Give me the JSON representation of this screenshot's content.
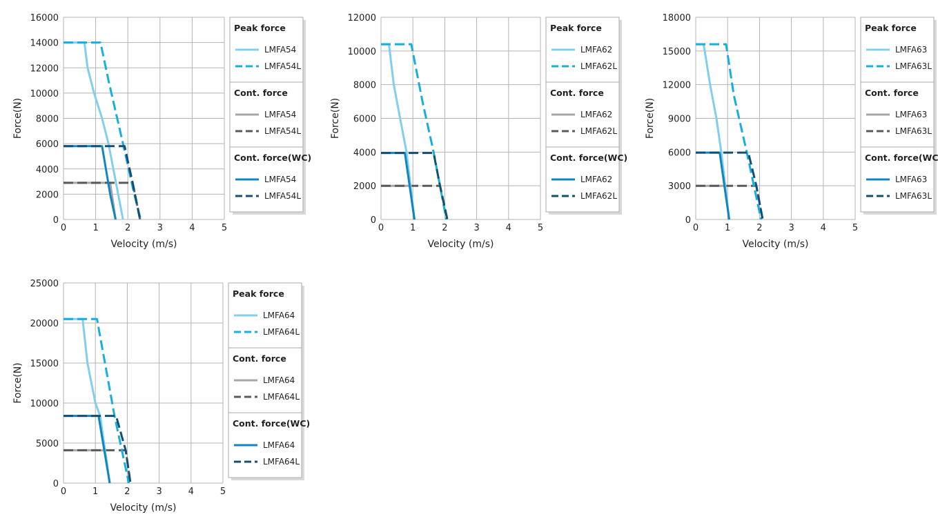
{
  "colors": {
    "peak": "#80cfef",
    "peak_l": "#14aee0",
    "cont": "#a6a6a6",
    "cont_l": "#595959",
    "wc": "#0f85c2",
    "wc_l": "#124f73",
    "grid": "#b3b3b3",
    "legend_border": "#aaaaaa",
    "legend_shadow": "#d9d9d9"
  },
  "chart_data": [
    {
      "type": "line",
      "xlabel": "Velocity (m/s)",
      "ylabel": "Force(N)",
      "xlim": [
        0,
        5
      ],
      "ylim": [
        0,
        16000
      ],
      "xticks": [
        "0",
        "1",
        "2",
        "3",
        "4",
        "5"
      ],
      "yticks": [
        "0",
        "2000",
        "4000",
        "6000",
        "8000",
        "10000",
        "12000",
        "14000",
        "16000"
      ],
      "grid": true,
      "legend": {
        "placement": "right",
        "groups": [
          {
            "title": "Peak force",
            "items": [
              "LMFA54",
              "LMFA54L"
            ]
          },
          {
            "title": "Cont. force",
            "items": [
              "LMFA54",
              "LMFA54L"
            ]
          },
          {
            "title": "Cont. force(WC)",
            "items": [
              "LMFA54",
              "LMFA54L"
            ]
          }
        ]
      },
      "series": [
        {
          "name": "LMFA54",
          "group": "Peak force",
          "style": "peak",
          "points": [
            [
              0,
              14000
            ],
            [
              0.65,
              14000
            ],
            [
              0.75,
              12000
            ],
            [
              0.95,
              10000
            ],
            [
              1.2,
              8000
            ],
            [
              1.4,
              6000
            ],
            [
              1.7,
              2000
            ],
            [
              1.85,
              0
            ]
          ]
        },
        {
          "name": "LMFA54L",
          "group": "Peak force",
          "style": "peak_l",
          "points": [
            [
              0,
              14000
            ],
            [
              1.15,
              14000
            ],
            [
              1.4,
              11000
            ],
            [
              1.85,
              6000
            ],
            [
              2.2,
              2000
            ],
            [
              2.4,
              0
            ]
          ]
        },
        {
          "name": "LMFA54",
          "group": "Cont. force",
          "style": "cont",
          "points": [
            [
              0,
              2900
            ],
            [
              1.45,
              2900
            ],
            [
              1.62,
              0
            ]
          ]
        },
        {
          "name": "LMFA54L",
          "group": "Cont. force",
          "style": "cont_l",
          "points": [
            [
              0,
              2900
            ],
            [
              2.15,
              2900
            ],
            [
              2.38,
              0
            ]
          ]
        },
        {
          "name": "LMFA54",
          "group": "Cont. force(WC)",
          "style": "wc",
          "points": [
            [
              0,
              5800
            ],
            [
              1.2,
              5800
            ],
            [
              1.45,
              2000
            ],
            [
              1.62,
              0
            ]
          ]
        },
        {
          "name": "LMFA54L",
          "group": "Cont. force(WC)",
          "style": "wc_l",
          "points": [
            [
              0,
              5800
            ],
            [
              1.9,
              5800
            ],
            [
              2.15,
              2900
            ],
            [
              2.38,
              0
            ]
          ]
        }
      ]
    },
    {
      "type": "line",
      "xlabel": "Velocity (m/s)",
      "ylabel": "Force(N)",
      "xlim": [
        0,
        5
      ],
      "ylim": [
        0,
        12000
      ],
      "xticks": [
        "0",
        "1",
        "2",
        "3",
        "4",
        "5"
      ],
      "yticks": [
        "0",
        "2000",
        "4000",
        "6000",
        "8000",
        "10000",
        "12000"
      ],
      "grid": true,
      "legend": {
        "placement": "right",
        "groups": [
          {
            "title": "Peak force",
            "items": [
              "LMFA62",
              "LMFA62L"
            ]
          },
          {
            "title": "Cont. force",
            "items": [
              "LMFA62",
              "LMFA62L"
            ]
          },
          {
            "title": "Cont. force(WC)",
            "items": [
              "LMFA62",
              "LMFA62L"
            ]
          }
        ]
      },
      "series": [
        {
          "name": "LMFA62",
          "group": "Peak force",
          "style": "peak",
          "points": [
            [
              0,
              10400
            ],
            [
              0.25,
              10400
            ],
            [
              0.4,
              8000
            ],
            [
              0.6,
              6000
            ],
            [
              0.8,
              4000
            ],
            [
              1.05,
              0
            ]
          ]
        },
        {
          "name": "LMFA62L",
          "group": "Peak force",
          "style": "peak_l",
          "points": [
            [
              0,
              10400
            ],
            [
              0.95,
              10400
            ],
            [
              1.3,
              7000
            ],
            [
              1.65,
              4000
            ],
            [
              2.05,
              0
            ]
          ]
        },
        {
          "name": "LMFA62",
          "group": "Cont. force",
          "style": "cont",
          "points": [
            [
              0,
              2000
            ],
            [
              0.9,
              2000
            ],
            [
              1.05,
              0
            ]
          ]
        },
        {
          "name": "LMFA62L",
          "group": "Cont. force",
          "style": "cont_l",
          "points": [
            [
              0,
              2000
            ],
            [
              1.85,
              2000
            ],
            [
              2.08,
              0
            ]
          ]
        },
        {
          "name": "LMFA62",
          "group": "Cont. force(WC)",
          "style": "wc",
          "points": [
            [
              0,
              3950
            ],
            [
              0.75,
              3950
            ],
            [
              1.05,
              0
            ]
          ]
        },
        {
          "name": "LMFA62L",
          "group": "Cont. force(WC)",
          "style": "wc_l",
          "points": [
            [
              0,
              3950
            ],
            [
              1.65,
              3950
            ],
            [
              1.85,
              2000
            ],
            [
              2.08,
              0
            ]
          ]
        }
      ]
    },
    {
      "type": "line",
      "xlabel": "Velocity (m/s)",
      "ylabel": "Force(N)",
      "xlim": [
        0,
        5
      ],
      "ylim": [
        0,
        18000
      ],
      "xticks": [
        "0",
        "1",
        "2",
        "3",
        "4",
        "5"
      ],
      "yticks": [
        "0",
        "3000",
        "6000",
        "9000",
        "12000",
        "15000",
        "18000"
      ],
      "grid": true,
      "legend": {
        "placement": "right",
        "groups": [
          {
            "title": "Peak force",
            "items": [
              "LMFA63",
              "LMFA63L"
            ]
          },
          {
            "title": "Cont. force",
            "items": [
              "LMFA63",
              "LMFA63L"
            ]
          },
          {
            "title": "Cont. force(WC)",
            "items": [
              "LMFA63",
              "LMFA63L"
            ]
          }
        ]
      },
      "series": [
        {
          "name": "LMFA63",
          "group": "Peak force",
          "style": "peak",
          "points": [
            [
              0,
              15600
            ],
            [
              0.25,
              15600
            ],
            [
              0.45,
              12000
            ],
            [
              0.65,
              9000
            ],
            [
              0.8,
              6000
            ],
            [
              1.05,
              0
            ]
          ]
        },
        {
          "name": "LMFA63L",
          "group": "Peak force",
          "style": "peak_l",
          "points": [
            [
              0,
              15600
            ],
            [
              0.95,
              15600
            ],
            [
              1.2,
              11000
            ],
            [
              1.6,
              6000
            ],
            [
              2.05,
              0
            ]
          ]
        },
        {
          "name": "LMFA63",
          "group": "Cont. force",
          "style": "cont",
          "points": [
            [
              0,
              3000
            ],
            [
              0.92,
              3000
            ],
            [
              1.05,
              0
            ]
          ]
        },
        {
          "name": "LMFA63L",
          "group": "Cont. force",
          "style": "cont_l",
          "points": [
            [
              0,
              3000
            ],
            [
              1.9,
              3000
            ],
            [
              2.1,
              0
            ]
          ]
        },
        {
          "name": "LMFA63",
          "group": "Cont. force(WC)",
          "style": "wc",
          "points": [
            [
              0,
              5950
            ],
            [
              0.75,
              5950
            ],
            [
              1.05,
              0
            ]
          ]
        },
        {
          "name": "LMFA63L",
          "group": "Cont. force(WC)",
          "style": "wc_l",
          "points": [
            [
              0,
              5950
            ],
            [
              1.65,
              5950
            ],
            [
              1.9,
              3000
            ],
            [
              2.1,
              0
            ]
          ]
        }
      ]
    },
    {
      "type": "line",
      "xlabel": "Velocity (m/s)",
      "ylabel": "Force(N)",
      "xlim": [
        0,
        5
      ],
      "ylim": [
        0,
        25000
      ],
      "xticks": [
        "0",
        "1",
        "2",
        "3",
        "4",
        "5"
      ],
      "yticks": [
        "0",
        "5000",
        "10000",
        "15000",
        "20000",
        "25000"
      ],
      "grid": true,
      "legend": {
        "placement": "right",
        "groups": [
          {
            "title": "Peak force",
            "items": [
              "LMFA64",
              "LMFA64L"
            ]
          },
          {
            "title": "Cont. force",
            "items": [
              "LMFA64",
              "LMFA64L"
            ]
          },
          {
            "title": "Cont. force(WC)",
            "items": [
              "LMFA64",
              "LMFA64L"
            ]
          }
        ]
      },
      "series": [
        {
          "name": "LMFA64",
          "group": "Peak force",
          "style": "peak",
          "points": [
            [
              0,
              20500
            ],
            [
              0.6,
              20500
            ],
            [
              0.75,
              15000
            ],
            [
              1.0,
              10000
            ],
            [
              1.15,
              8400
            ],
            [
              1.45,
              0
            ]
          ]
        },
        {
          "name": "LMFA64L",
          "group": "Peak force",
          "style": "peak_l",
          "points": [
            [
              0,
              20500
            ],
            [
              1.05,
              20500
            ],
            [
              1.3,
              15000
            ],
            [
              1.6,
              8400
            ],
            [
              2.05,
              0
            ]
          ]
        },
        {
          "name": "LMFA64",
          "group": "Cont. force",
          "style": "cont",
          "points": [
            [
              0,
              4100
            ],
            [
              1.3,
              4100
            ],
            [
              1.45,
              0
            ]
          ]
        },
        {
          "name": "LMFA64L",
          "group": "Cont. force",
          "style": "cont_l",
          "points": [
            [
              0,
              4100
            ],
            [
              1.95,
              4100
            ],
            [
              2.1,
              0
            ]
          ]
        },
        {
          "name": "LMFA64",
          "group": "Cont. force(WC)",
          "style": "wc",
          "points": [
            [
              0,
              8400
            ],
            [
              1.1,
              8400
            ],
            [
              1.45,
              0
            ]
          ]
        },
        {
          "name": "LMFA64L",
          "group": "Cont. force(WC)",
          "style": "wc_l",
          "points": [
            [
              0,
              8400
            ],
            [
              1.65,
              8400
            ],
            [
              1.95,
              4100
            ],
            [
              2.1,
              0
            ]
          ]
        }
      ]
    }
  ]
}
